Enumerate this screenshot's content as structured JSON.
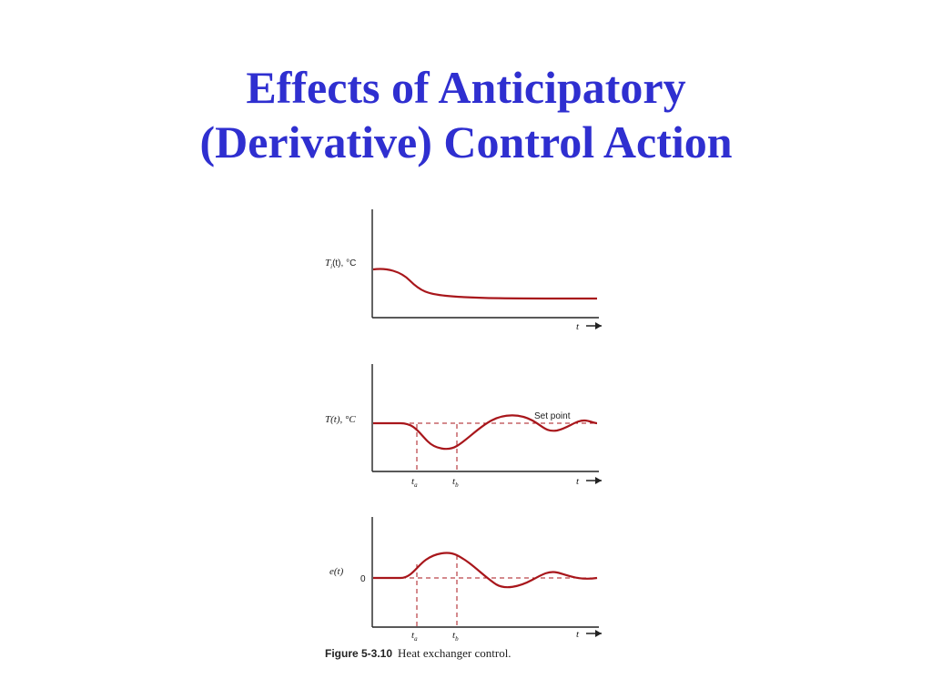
{
  "slide": {
    "title_line1": "Effects of Anticipatory",
    "title_line2": "(Derivative) Control Action"
  },
  "figure": {
    "panel1": {
      "ylabel_main": "T",
      "ylabel_sub": "i",
      "ylabel_rest": "(t), °C",
      "t_arrow": "t"
    },
    "panel2": {
      "ylabel": "T(t), °C",
      "setpoint_label": "Set point",
      "ta_main": "t",
      "ta_sub": "a",
      "tb_main": "t",
      "tb_sub": "b",
      "t_arrow": "t"
    },
    "panel3": {
      "ylabel": "e(t)",
      "zero_label": "0",
      "ta_main": "t",
      "ta_sub": "a",
      "tb_main": "t",
      "tb_sub": "b",
      "t_arrow": "t"
    },
    "caption_number": "Figure 5-3.10",
    "caption_text": "Heat exchanger control."
  },
  "colors": {
    "title": "#2f2fd0",
    "curve": "#a8161b",
    "axis": "#222222"
  }
}
